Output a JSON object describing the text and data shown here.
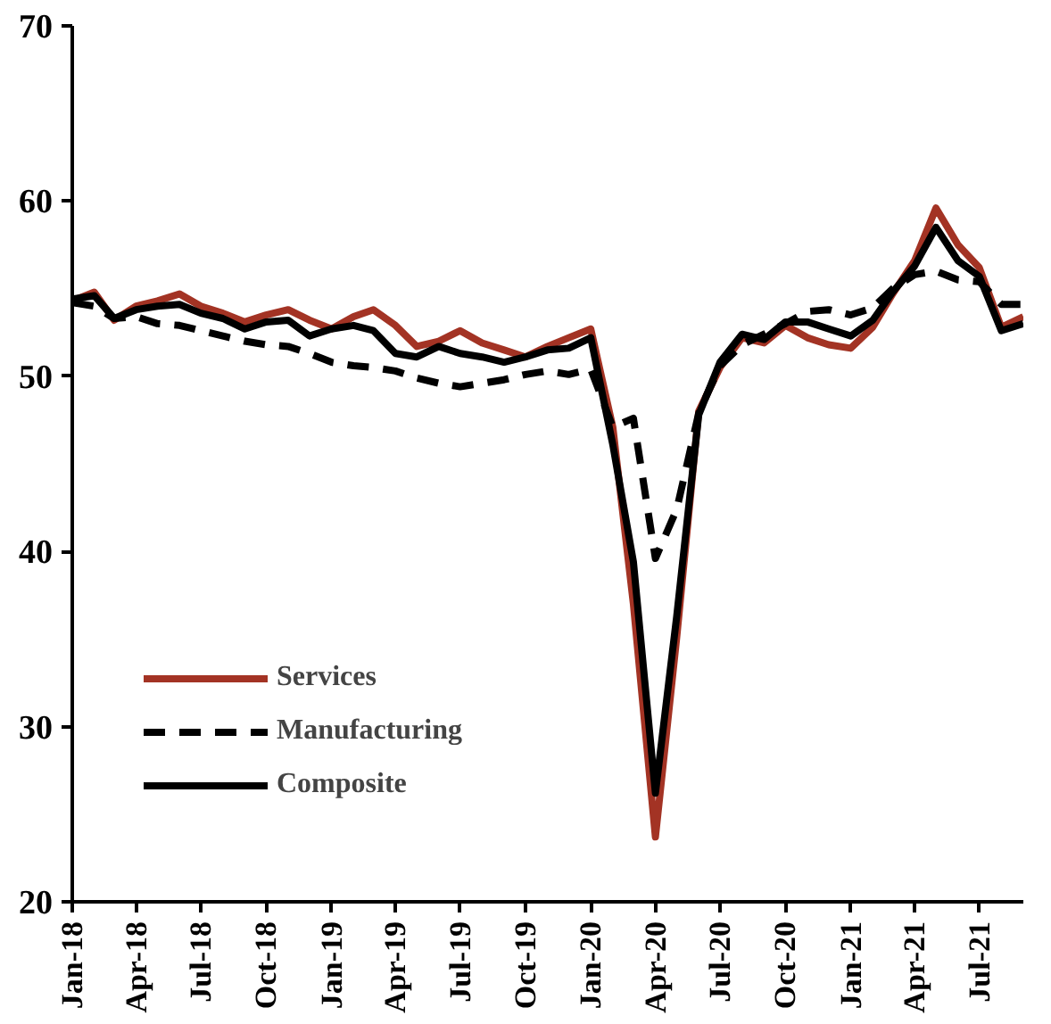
{
  "chart_data": {
    "type": "line",
    "x": [
      "2018-01",
      "2018-02",
      "2018-03",
      "2018-04",
      "2018-05",
      "2018-06",
      "2018-07",
      "2018-08",
      "2018-09",
      "2018-10",
      "2018-11",
      "2018-12",
      "2019-01",
      "2019-02",
      "2019-03",
      "2019-04",
      "2019-05",
      "2019-06",
      "2019-07",
      "2019-08",
      "2019-09",
      "2019-10",
      "2019-11",
      "2019-12",
      "2020-01",
      "2020-02",
      "2020-03",
      "2020-04",
      "2020-05",
      "2020-06",
      "2020-07",
      "2020-08",
      "2020-09",
      "2020-10",
      "2020-11",
      "2020-12",
      "2021-01",
      "2021-02",
      "2021-03",
      "2021-04",
      "2021-05",
      "2021-06",
      "2021-07",
      "2021-08",
      "2021-09"
    ],
    "series": [
      {
        "name": "Services",
        "color": "#a33324",
        "line_style": "solid",
        "values": [
          54.3,
          54.8,
          53.2,
          54.0,
          54.3,
          54.7,
          54.0,
          53.6,
          53.1,
          53.5,
          53.8,
          53.2,
          52.7,
          53.4,
          53.8,
          52.9,
          51.7,
          52.0,
          52.6,
          51.9,
          51.5,
          51.1,
          51.7,
          52.2,
          52.7,
          47.1,
          37.0,
          23.7,
          35.1,
          48.0,
          50.5,
          52.2,
          51.9,
          52.9,
          52.2,
          51.8,
          51.6,
          52.8,
          54.7,
          56.6,
          59.6,
          57.5,
          56.2,
          52.8,
          53.4
        ]
      },
      {
        "name": "Manufacturing",
        "color": "#000000",
        "line_style": "dashed",
        "values": [
          54.2,
          54.0,
          53.3,
          53.4,
          53.0,
          52.9,
          52.6,
          52.3,
          52.0,
          51.8,
          51.7,
          51.3,
          50.8,
          50.6,
          50.5,
          50.3,
          49.9,
          49.6,
          49.4,
          49.6,
          49.8,
          50.1,
          50.3,
          50.1,
          50.4,
          47.1,
          47.6,
          39.6,
          42.4,
          47.9,
          50.6,
          51.8,
          52.4,
          53.0,
          53.7,
          53.8,
          53.5,
          53.9,
          55.0,
          55.8,
          56.0,
          55.5,
          55.4,
          54.1,
          54.1
        ]
      },
      {
        "name": "Composite",
        "color": "#000000",
        "line_style": "solid",
        "values": [
          54.4,
          54.6,
          53.3,
          53.8,
          54.0,
          54.1,
          53.6,
          53.3,
          52.7,
          53.1,
          53.2,
          52.3,
          52.7,
          52.9,
          52.6,
          51.3,
          51.1,
          51.7,
          51.3,
          51.1,
          50.8,
          51.1,
          51.5,
          51.6,
          52.2,
          46.1,
          39.4,
          26.2,
          36.3,
          47.8,
          50.8,
          52.4,
          52.1,
          53.1,
          53.1,
          52.7,
          52.3,
          53.2,
          54.8,
          56.3,
          58.5,
          56.6,
          55.7,
          52.6,
          53.0
        ]
      }
    ],
    "xlim": [
      "2018-01",
      "2021-09"
    ],
    "xticks": [
      {
        "value": "2018-01",
        "label": "Jan-18"
      },
      {
        "value": "2018-04",
        "label": "Apr-18"
      },
      {
        "value": "2018-07",
        "label": "Jul-18"
      },
      {
        "value": "2018-10",
        "label": "Oct-18"
      },
      {
        "value": "2019-01",
        "label": "Jan-19"
      },
      {
        "value": "2019-04",
        "label": "Apr-19"
      },
      {
        "value": "2019-07",
        "label": "Jul-19"
      },
      {
        "value": "2019-10",
        "label": "Oct-19"
      },
      {
        "value": "2020-01",
        "label": "Jan-20"
      },
      {
        "value": "2020-04",
        "label": "Apr-20"
      },
      {
        "value": "2020-07",
        "label": "Jul-20"
      },
      {
        "value": "2020-10",
        "label": "Oct-20"
      },
      {
        "value": "2021-01",
        "label": "Jan-21"
      },
      {
        "value": "2021-04",
        "label": "Apr-21"
      },
      {
        "value": "2021-07",
        "label": "Jul-21"
      }
    ],
    "ylim": [
      20,
      70
    ],
    "yticks": [
      20,
      30,
      40,
      50,
      60,
      70
    ],
    "grid": false,
    "legend": "left"
  }
}
